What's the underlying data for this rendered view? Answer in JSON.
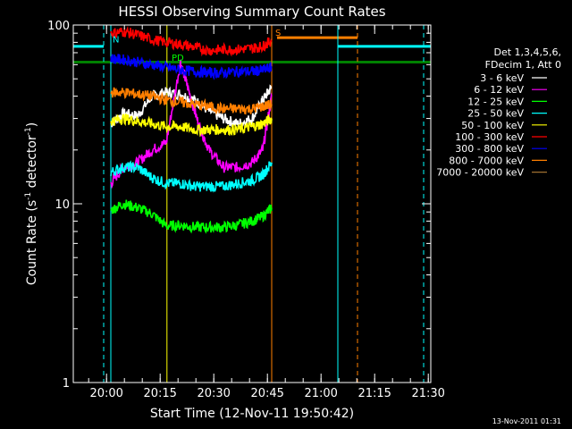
{
  "chart_data": {
    "type": "line",
    "title": "HESSI Observing Summary Count Rates",
    "xlabel": "Start Time (12-Nov-11 19:50:42)",
    "ylabel_main": "Count Rate (s",
    "ylabel_sup": "-1",
    "ylabel_mid": " detector",
    "ylabel_sup2": "-1",
    "ylabel_end": ")",
    "y_scale": "log",
    "ylim": [
      1,
      100
    ],
    "xlim_minutes": [
      0,
      100
    ],
    "x_ticks": [
      {
        "label": "20:00",
        "minute": 9.3
      },
      {
        "label": "20:15",
        "minute": 24.3
      },
      {
        "label": "20:30",
        "minute": 39.3
      },
      {
        "label": "20:45",
        "minute": 54.3
      },
      {
        "label": "21:00",
        "minute": 69.3
      },
      {
        "label": "21:15",
        "minute": 84.3
      },
      {
        "label": "21:30",
        "minute": 99.3
      }
    ],
    "y_ticks": [
      {
        "label": "1",
        "value": 1
      },
      {
        "label": "10",
        "value": 10
      },
      {
        "label": "100",
        "value": 100
      }
    ],
    "legend_header": [
      "Det 1,3,4,5,6,",
      "FDecim 1, Att 0"
    ],
    "legend_placement": "right",
    "series": [
      {
        "name": "3 - 6 keV",
        "color": "#ffffff",
        "points": [
          [
            10.5,
            28
          ],
          [
            14,
            32
          ],
          [
            18,
            31
          ],
          [
            22,
            40
          ],
          [
            26,
            42
          ],
          [
            30,
            41
          ],
          [
            34,
            38
          ],
          [
            38,
            33
          ],
          [
            42,
            30
          ],
          [
            46,
            28
          ],
          [
            50,
            30
          ],
          [
            53,
            38
          ],
          [
            55.5,
            45
          ]
        ]
      },
      {
        "name": "6 - 12 keV",
        "color": "#ff00ff",
        "points": [
          [
            10.5,
            13
          ],
          [
            14,
            16
          ],
          [
            18,
            17
          ],
          [
            22,
            20
          ],
          [
            26,
            22
          ],
          [
            30,
            62
          ],
          [
            32,
            45
          ],
          [
            35,
            28
          ],
          [
            38,
            20
          ],
          [
            42,
            16
          ],
          [
            46,
            16
          ],
          [
            50,
            17
          ],
          [
            53,
            20
          ],
          [
            55.5,
            40
          ]
        ]
      },
      {
        "name": "12 - 25 keV",
        "color": "#00ff00",
        "points": [
          [
            10.5,
            9.2
          ],
          [
            14,
            10
          ],
          [
            18,
            9.5
          ],
          [
            22,
            8.8
          ],
          [
            26,
            7.5
          ],
          [
            30,
            7.6
          ],
          [
            34,
            7.4
          ],
          [
            38,
            7.4
          ],
          [
            42,
            7.4
          ],
          [
            46,
            7.6
          ],
          [
            50,
            8
          ],
          [
            53,
            8.5
          ],
          [
            55.5,
            9.5
          ]
        ]
      },
      {
        "name": "25 - 50 keV",
        "color": "#00ffff",
        "points": [
          [
            10.5,
            15
          ],
          [
            14,
            16
          ],
          [
            18,
            16
          ],
          [
            22,
            14
          ],
          [
            26,
            13
          ],
          [
            30,
            13
          ],
          [
            34,
            12.5
          ],
          [
            38,
            12.5
          ],
          [
            42,
            12.5
          ],
          [
            46,
            13
          ],
          [
            50,
            13.5
          ],
          [
            53,
            14.5
          ],
          [
            55.5,
            17
          ]
        ]
      },
      {
        "name": "50 - 100 keV",
        "color": "#ffff00",
        "points": [
          [
            10.5,
            29
          ],
          [
            14,
            30
          ],
          [
            18,
            29
          ],
          [
            22,
            28
          ],
          [
            26,
            27
          ],
          [
            30,
            27
          ],
          [
            34,
            26
          ],
          [
            38,
            26
          ],
          [
            42,
            26
          ],
          [
            46,
            26
          ],
          [
            50,
            27
          ],
          [
            53,
            28
          ],
          [
            55.5,
            30
          ]
        ]
      },
      {
        "name": "100 - 300 keV",
        "color": "#ff0000",
        "points": [
          [
            10.5,
            90
          ],
          [
            14,
            92
          ],
          [
            18,
            88
          ],
          [
            22,
            83
          ],
          [
            26,
            80
          ],
          [
            30,
            78
          ],
          [
            34,
            75
          ],
          [
            38,
            72
          ],
          [
            42,
            73
          ],
          [
            46,
            73
          ],
          [
            50,
            74
          ],
          [
            53,
            76
          ],
          [
            55.5,
            82
          ]
        ]
      },
      {
        "name": "300 - 800 keV",
        "color": "#0000ff",
        "points": [
          [
            10.5,
            65
          ],
          [
            14,
            64
          ],
          [
            18,
            62
          ],
          [
            22,
            60
          ],
          [
            26,
            58
          ],
          [
            30,
            56
          ],
          [
            34,
            55
          ],
          [
            38,
            54
          ],
          [
            42,
            54
          ],
          [
            46,
            55
          ],
          [
            50,
            55
          ],
          [
            53,
            56
          ],
          [
            55.5,
            58
          ]
        ]
      },
      {
        "name": "800 - 7000 keV",
        "color": "#ff7f00",
        "points": [
          [
            10.5,
            42
          ],
          [
            14,
            42
          ],
          [
            18,
            41
          ],
          [
            22,
            40
          ],
          [
            26,
            38
          ],
          [
            30,
            37
          ],
          [
            34,
            36
          ],
          [
            38,
            35
          ],
          [
            42,
            34
          ],
          [
            46,
            34
          ],
          [
            50,
            34
          ],
          [
            53,
            35
          ],
          [
            55.5,
            36
          ]
        ]
      },
      {
        "name": "7000 - 20000 keV",
        "color": "#a07030",
        "points": []
      }
    ],
    "flags": [
      {
        "name": "attenuator",
        "color": "#00ffff",
        "level": 76,
        "segments": [
          [
            0,
            8.5
          ],
          [
            74,
            100
          ]
        ]
      },
      {
        "name": "decimation",
        "color": "#ff7f00",
        "level": 85,
        "segments": [
          [
            57,
            79.5
          ]
        ]
      },
      {
        "name": "threshold",
        "color": "#008000",
        "level": 62,
        "segments": [
          [
            0,
            100
          ]
        ]
      }
    ],
    "vertical_lines": [
      {
        "name": "night-end",
        "color": "#00ffff",
        "minute": 10.5,
        "style": "solid"
      },
      {
        "name": "saa-start",
        "color": "#00ffff",
        "minute": 8.5,
        "style": "dashed"
      },
      {
        "name": "data-gap-start",
        "color": "#ff7f00",
        "minute": 55.5,
        "style": "solid"
      },
      {
        "name": "night-start",
        "color": "#00ffff",
        "minute": 74,
        "style": "solid"
      },
      {
        "name": "decim-end",
        "color": "#ff7f00",
        "minute": 79.5,
        "style": "dashed"
      },
      {
        "name": "saa-end",
        "color": "#00ffff",
        "minute": 98,
        "style": "dashed"
      },
      {
        "name": "yellow-spike",
        "color": "#ffff00",
        "minute": 26.2,
        "style": "solid"
      }
    ],
    "annotations": [
      {
        "text": "N",
        "color": "#00ffff",
        "minute": 11,
        "value": 80
      },
      {
        "text": "S",
        "color": "#ff7f00",
        "minute": 56.5,
        "value": 87
      },
      {
        "text": "PD",
        "color": "#00ff00",
        "minute": 27.5,
        "value": 63
      }
    ]
  },
  "timestamp": "13-Nov-2011 01:31"
}
